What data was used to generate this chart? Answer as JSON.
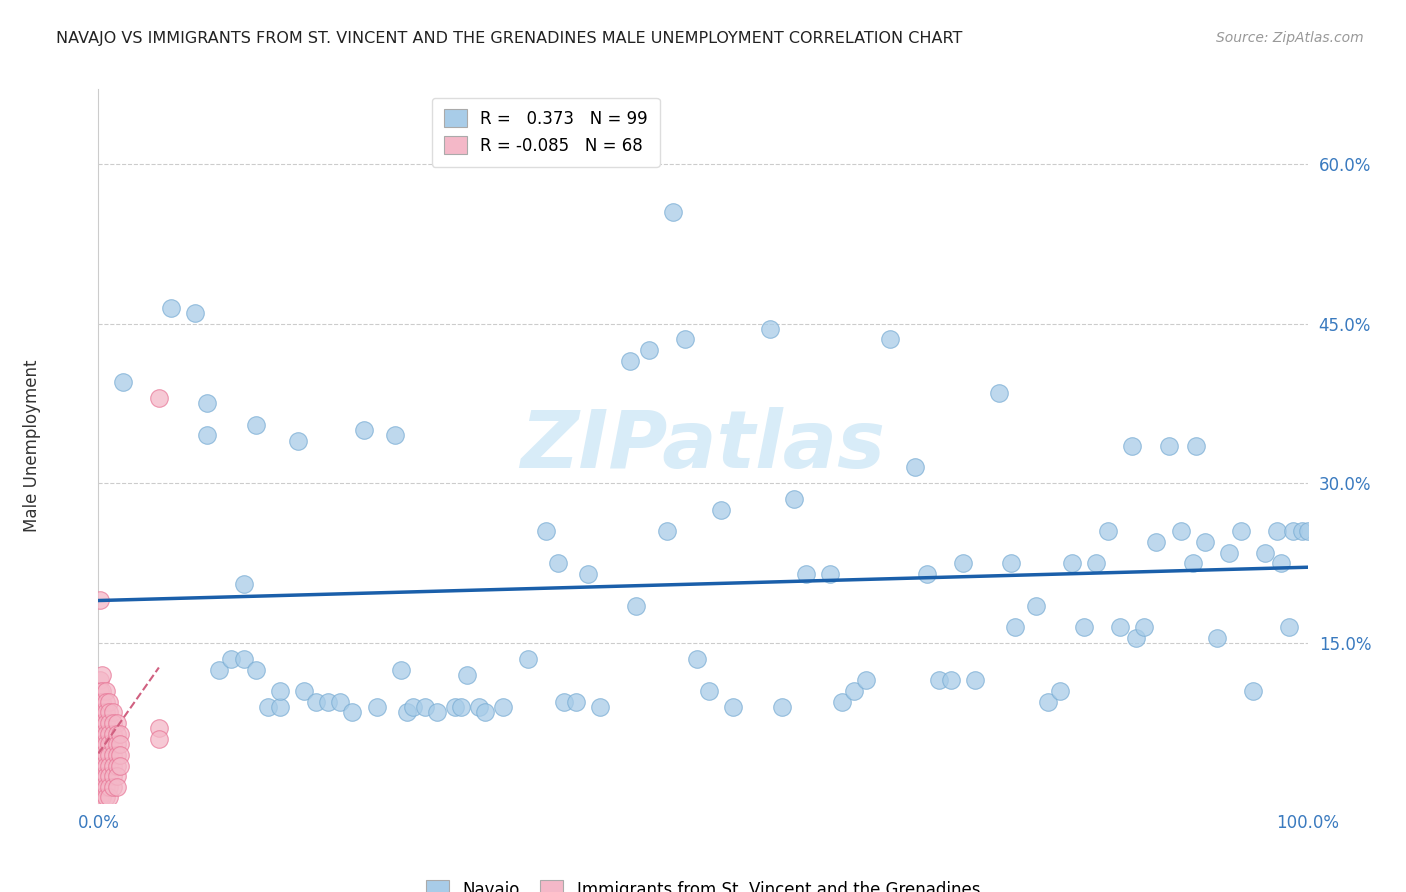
{
  "title": "NAVAJO VS IMMIGRANTS FROM ST. VINCENT AND THE GRENADINES MALE UNEMPLOYMENT CORRELATION CHART",
  "source": "Source: ZipAtlas.com",
  "ylabel": "Male Unemployment",
  "xlim": [
    0,
    1.0
  ],
  "ylim": [
    0,
    0.67
  ],
  "navajo_color": "#a8cce8",
  "navajo_edge": "#7aadd4",
  "svg_color": "#f4b8c8",
  "svg_edge": "#e87898",
  "regression_line_color": "#1a5faa",
  "regression_line_color2": "#d06080",
  "watermark_color": "#d8ecf8",
  "navajo_points": [
    [
      0.02,
      0.395
    ],
    [
      0.06,
      0.465
    ],
    [
      0.08,
      0.46
    ],
    [
      0.09,
      0.375
    ],
    [
      0.09,
      0.345
    ],
    [
      0.1,
      0.125
    ],
    [
      0.11,
      0.135
    ],
    [
      0.12,
      0.205
    ],
    [
      0.12,
      0.135
    ],
    [
      0.13,
      0.355
    ],
    [
      0.13,
      0.125
    ],
    [
      0.14,
      0.09
    ],
    [
      0.15,
      0.09
    ],
    [
      0.15,
      0.105
    ],
    [
      0.165,
      0.34
    ],
    [
      0.17,
      0.105
    ],
    [
      0.18,
      0.095
    ],
    [
      0.19,
      0.095
    ],
    [
      0.2,
      0.095
    ],
    [
      0.21,
      0.085
    ],
    [
      0.22,
      0.35
    ],
    [
      0.23,
      0.09
    ],
    [
      0.245,
      0.345
    ],
    [
      0.25,
      0.125
    ],
    [
      0.255,
      0.085
    ],
    [
      0.26,
      0.09
    ],
    [
      0.27,
      0.09
    ],
    [
      0.28,
      0.085
    ],
    [
      0.295,
      0.09
    ],
    [
      0.3,
      0.09
    ],
    [
      0.305,
      0.12
    ],
    [
      0.315,
      0.09
    ],
    [
      0.32,
      0.085
    ],
    [
      0.335,
      0.09
    ],
    [
      0.355,
      0.135
    ],
    [
      0.37,
      0.255
    ],
    [
      0.38,
      0.225
    ],
    [
      0.385,
      0.095
    ],
    [
      0.395,
      0.095
    ],
    [
      0.405,
      0.215
    ],
    [
      0.415,
      0.09
    ],
    [
      0.44,
      0.415
    ],
    [
      0.445,
      0.185
    ],
    [
      0.455,
      0.425
    ],
    [
      0.47,
      0.255
    ],
    [
      0.475,
      0.555
    ],
    [
      0.485,
      0.435
    ],
    [
      0.495,
      0.135
    ],
    [
      0.505,
      0.105
    ],
    [
      0.515,
      0.275
    ],
    [
      0.525,
      0.09
    ],
    [
      0.555,
      0.445
    ],
    [
      0.565,
      0.09
    ],
    [
      0.575,
      0.285
    ],
    [
      0.585,
      0.215
    ],
    [
      0.605,
      0.215
    ],
    [
      0.615,
      0.095
    ],
    [
      0.625,
      0.105
    ],
    [
      0.635,
      0.115
    ],
    [
      0.655,
      0.435
    ],
    [
      0.675,
      0.315
    ],
    [
      0.685,
      0.215
    ],
    [
      0.695,
      0.115
    ],
    [
      0.705,
      0.115
    ],
    [
      0.715,
      0.225
    ],
    [
      0.725,
      0.115
    ],
    [
      0.745,
      0.385
    ],
    [
      0.755,
      0.225
    ],
    [
      0.758,
      0.165
    ],
    [
      0.775,
      0.185
    ],
    [
      0.785,
      0.095
    ],
    [
      0.795,
      0.105
    ],
    [
      0.805,
      0.225
    ],
    [
      0.815,
      0.165
    ],
    [
      0.825,
      0.225
    ],
    [
      0.835,
      0.255
    ],
    [
      0.845,
      0.165
    ],
    [
      0.855,
      0.335
    ],
    [
      0.858,
      0.155
    ],
    [
      0.865,
      0.165
    ],
    [
      0.875,
      0.245
    ],
    [
      0.885,
      0.335
    ],
    [
      0.895,
      0.255
    ],
    [
      0.905,
      0.225
    ],
    [
      0.908,
      0.335
    ],
    [
      0.915,
      0.245
    ],
    [
      0.925,
      0.155
    ],
    [
      0.935,
      0.235
    ],
    [
      0.945,
      0.255
    ],
    [
      0.955,
      0.105
    ],
    [
      0.965,
      0.235
    ],
    [
      0.975,
      0.255
    ],
    [
      0.978,
      0.225
    ],
    [
      0.985,
      0.165
    ],
    [
      0.988,
      0.255
    ],
    [
      0.995,
      0.255
    ],
    [
      1.0,
      0.255
    ]
  ],
  "svg_points": [
    [
      0.001,
      0.19
    ],
    [
      0.001,
      0.115
    ],
    [
      0.001,
      0.105
    ],
    [
      0.001,
      0.095
    ],
    [
      0.001,
      0.085
    ],
    [
      0.001,
      0.075
    ],
    [
      0.001,
      0.065
    ],
    [
      0.001,
      0.055
    ],
    [
      0.001,
      0.045
    ],
    [
      0.001,
      0.035
    ],
    [
      0.001,
      0.025
    ],
    [
      0.001,
      0.015
    ],
    [
      0.001,
      0.005
    ],
    [
      0.003,
      0.12
    ],
    [
      0.003,
      0.105
    ],
    [
      0.003,
      0.095
    ],
    [
      0.003,
      0.085
    ],
    [
      0.003,
      0.075
    ],
    [
      0.003,
      0.065
    ],
    [
      0.003,
      0.055
    ],
    [
      0.003,
      0.045
    ],
    [
      0.003,
      0.035
    ],
    [
      0.003,
      0.025
    ],
    [
      0.003,
      0.015
    ],
    [
      0.003,
      0.005
    ],
    [
      0.006,
      0.105
    ],
    [
      0.006,
      0.095
    ],
    [
      0.006,
      0.085
    ],
    [
      0.006,
      0.075
    ],
    [
      0.006,
      0.065
    ],
    [
      0.006,
      0.055
    ],
    [
      0.006,
      0.045
    ],
    [
      0.006,
      0.035
    ],
    [
      0.006,
      0.025
    ],
    [
      0.006,
      0.015
    ],
    [
      0.006,
      0.005
    ],
    [
      0.009,
      0.095
    ],
    [
      0.009,
      0.085
    ],
    [
      0.009,
      0.075
    ],
    [
      0.009,
      0.065
    ],
    [
      0.009,
      0.055
    ],
    [
      0.009,
      0.045
    ],
    [
      0.009,
      0.035
    ],
    [
      0.009,
      0.025
    ],
    [
      0.009,
      0.015
    ],
    [
      0.009,
      0.005
    ],
    [
      0.012,
      0.085
    ],
    [
      0.012,
      0.075
    ],
    [
      0.012,
      0.065
    ],
    [
      0.012,
      0.055
    ],
    [
      0.012,
      0.045
    ],
    [
      0.012,
      0.035
    ],
    [
      0.012,
      0.025
    ],
    [
      0.012,
      0.015
    ],
    [
      0.015,
      0.075
    ],
    [
      0.015,
      0.065
    ],
    [
      0.015,
      0.055
    ],
    [
      0.015,
      0.045
    ],
    [
      0.015,
      0.035
    ],
    [
      0.015,
      0.025
    ],
    [
      0.015,
      0.015
    ],
    [
      0.018,
      0.065
    ],
    [
      0.018,
      0.055
    ],
    [
      0.018,
      0.045
    ],
    [
      0.018,
      0.035
    ],
    [
      0.05,
      0.38
    ],
    [
      0.05,
      0.07
    ],
    [
      0.05,
      0.06
    ]
  ]
}
